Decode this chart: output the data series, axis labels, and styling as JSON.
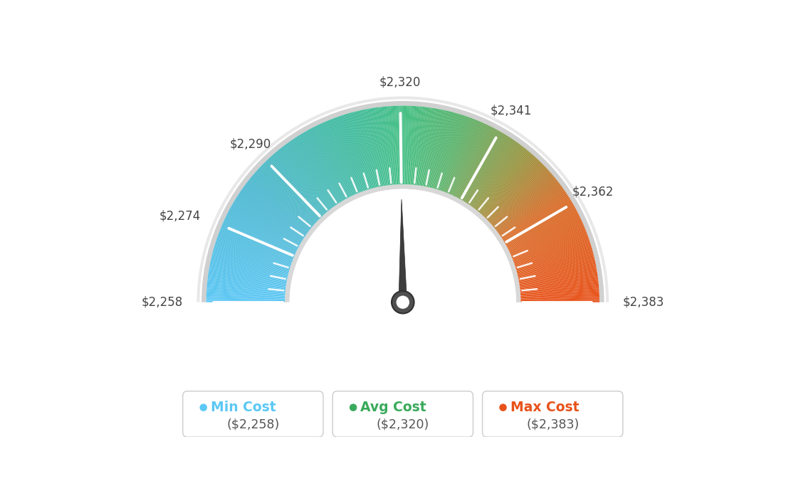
{
  "min_val": 2258,
  "avg_val": 2320,
  "max_val": 2383,
  "tick_labels": [
    "$2,258",
    "$2,274",
    "$2,290",
    "$2,320",
    "$2,341",
    "$2,362",
    "$2,383"
  ],
  "tick_values": [
    2258,
    2274,
    2290,
    2320,
    2341,
    2362,
    2383
  ],
  "legend": [
    {
      "label": "Min Cost",
      "sublabel": "($2,258)",
      "color": "#5bc8f5"
    },
    {
      "label": "Avg Cost",
      "sublabel": "($2,320)",
      "color": "#3aaa5c"
    },
    {
      "label": "Max Cost",
      "sublabel": "($2,383)",
      "color": "#e8521a"
    }
  ],
  "bg_color": "#ffffff",
  "color_stops": [
    [
      0.0,
      [
        0.36,
        0.78,
        0.96
      ]
    ],
    [
      0.2,
      [
        0.3,
        0.72,
        0.82
      ]
    ],
    [
      0.4,
      [
        0.25,
        0.73,
        0.62
      ]
    ],
    [
      0.5,
      [
        0.27,
        0.75,
        0.52
      ]
    ],
    [
      0.6,
      [
        0.35,
        0.7,
        0.42
      ]
    ],
    [
      0.72,
      [
        0.6,
        0.58,
        0.25
      ]
    ],
    [
      0.82,
      [
        0.85,
        0.42,
        0.15
      ]
    ],
    [
      1.0,
      [
        0.91,
        0.32,
        0.1
      ]
    ]
  ]
}
